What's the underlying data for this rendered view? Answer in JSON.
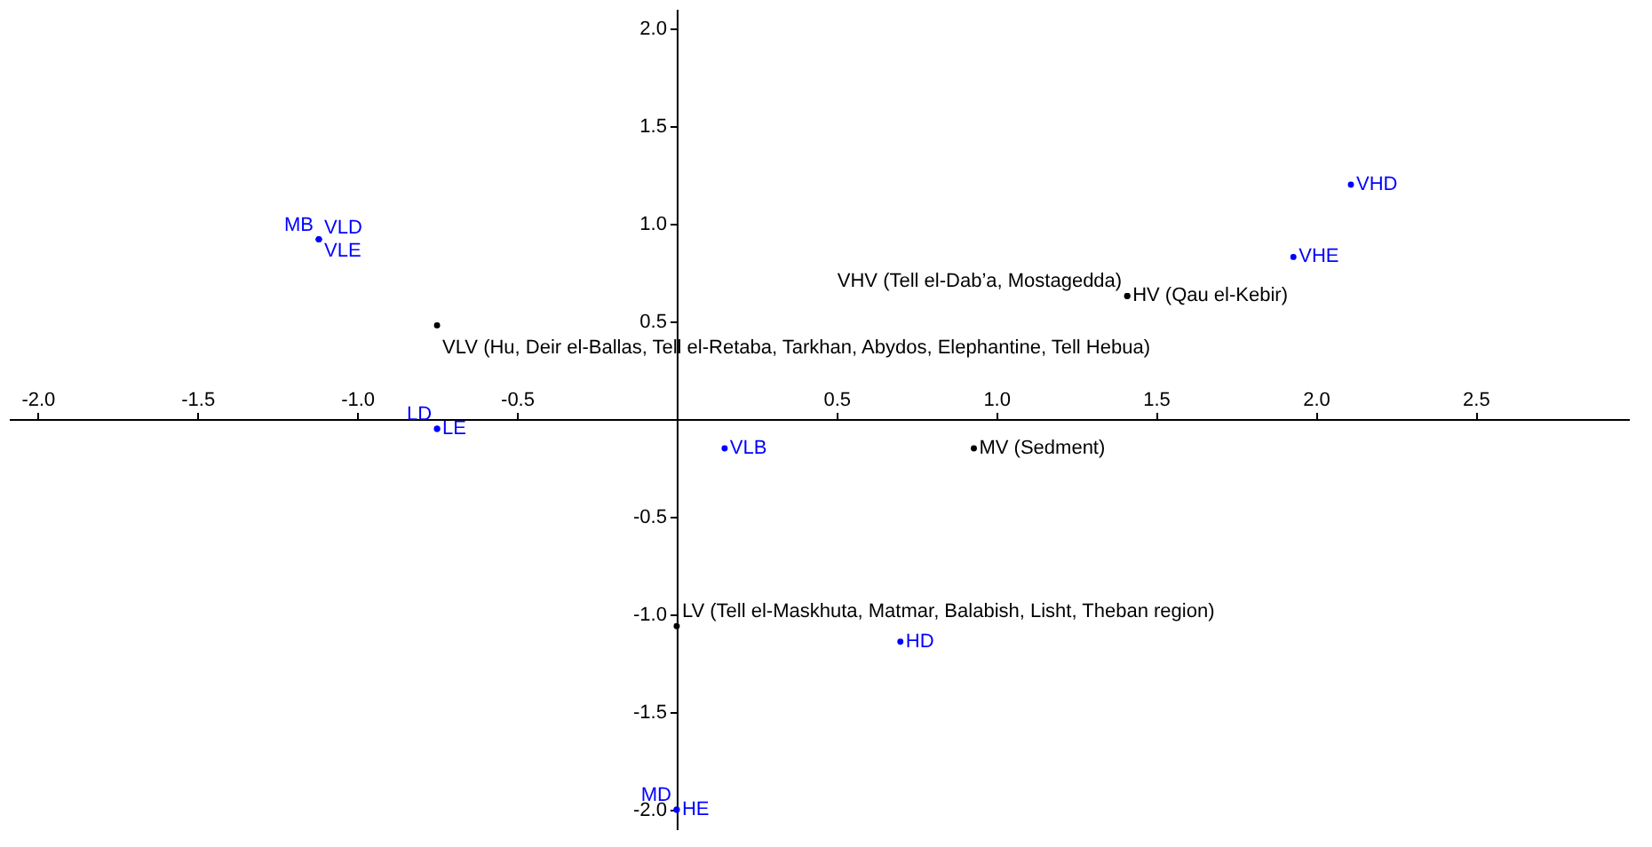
{
  "chart_data": {
    "type": "scatter",
    "xlim": [
      -2.09,
      2.98
    ],
    "ylim": [
      -2.1,
      2.1
    ],
    "xticks": [
      {
        "value": -2,
        "label": "-2.0"
      },
      -1.5,
      {
        "value": -1,
        "label": "-1.0"
      },
      -0.5,
      0.5,
      {
        "value": 1,
        "label": "1.0"
      },
      1.5,
      {
        "value": 2,
        "label": "2.0"
      },
      2.5
    ],
    "yticks": [
      {
        "value": -2,
        "label": "-2.0"
      },
      -1.5,
      {
        "value": -1,
        "label": "-1.0"
      },
      -0.5,
      0.5,
      {
        "value": 1,
        "label": "1.0"
      },
      1.5,
      {
        "value": 2,
        "label": "2.0"
      }
    ],
    "grid": false,
    "legend": false,
    "marker": "circle",
    "series": [
      {
        "color": "#000000",
        "x": [
          1.41,
          1.41,
          -0.75,
          0.93,
          0.0
        ],
        "values": [
          0.63,
          0.63,
          0.48,
          -0.15,
          -1.06
        ],
        "value_labels": [
          "VHV (Tell el-Dab’a, Mostagedda)",
          "HV (Qau el-Kebir)",
          "VLV (Hu, Deir el-Ballas, Tell el-Retaba, Tarkhan, Abydos, Elephantine, Tell Hebua)",
          "MV (Sedment)",
          "LV (Tell el-Maskhuta, Matmar, Balabish, Lisht, Theban region)"
        ]
      },
      {
        "color": "#0000ff",
        "x": [
          2.11,
          1.93,
          -1.12,
          -1.12,
          -1.12,
          -0.75,
          -0.75,
          0.15,
          0.7,
          0.0,
          0.0
        ],
        "values": [
          1.2,
          0.83,
          0.92,
          0.92,
          0.92,
          -0.05,
          -0.05,
          -0.15,
          -1.14,
          -2.0,
          -2.0
        ],
        "value_labels": [
          "VHD",
          "VHE",
          "MB",
          "VLD",
          "VLE",
          "LD",
          "LE",
          "VLB",
          "HD",
          "MD",
          "HE"
        ]
      }
    ]
  }
}
